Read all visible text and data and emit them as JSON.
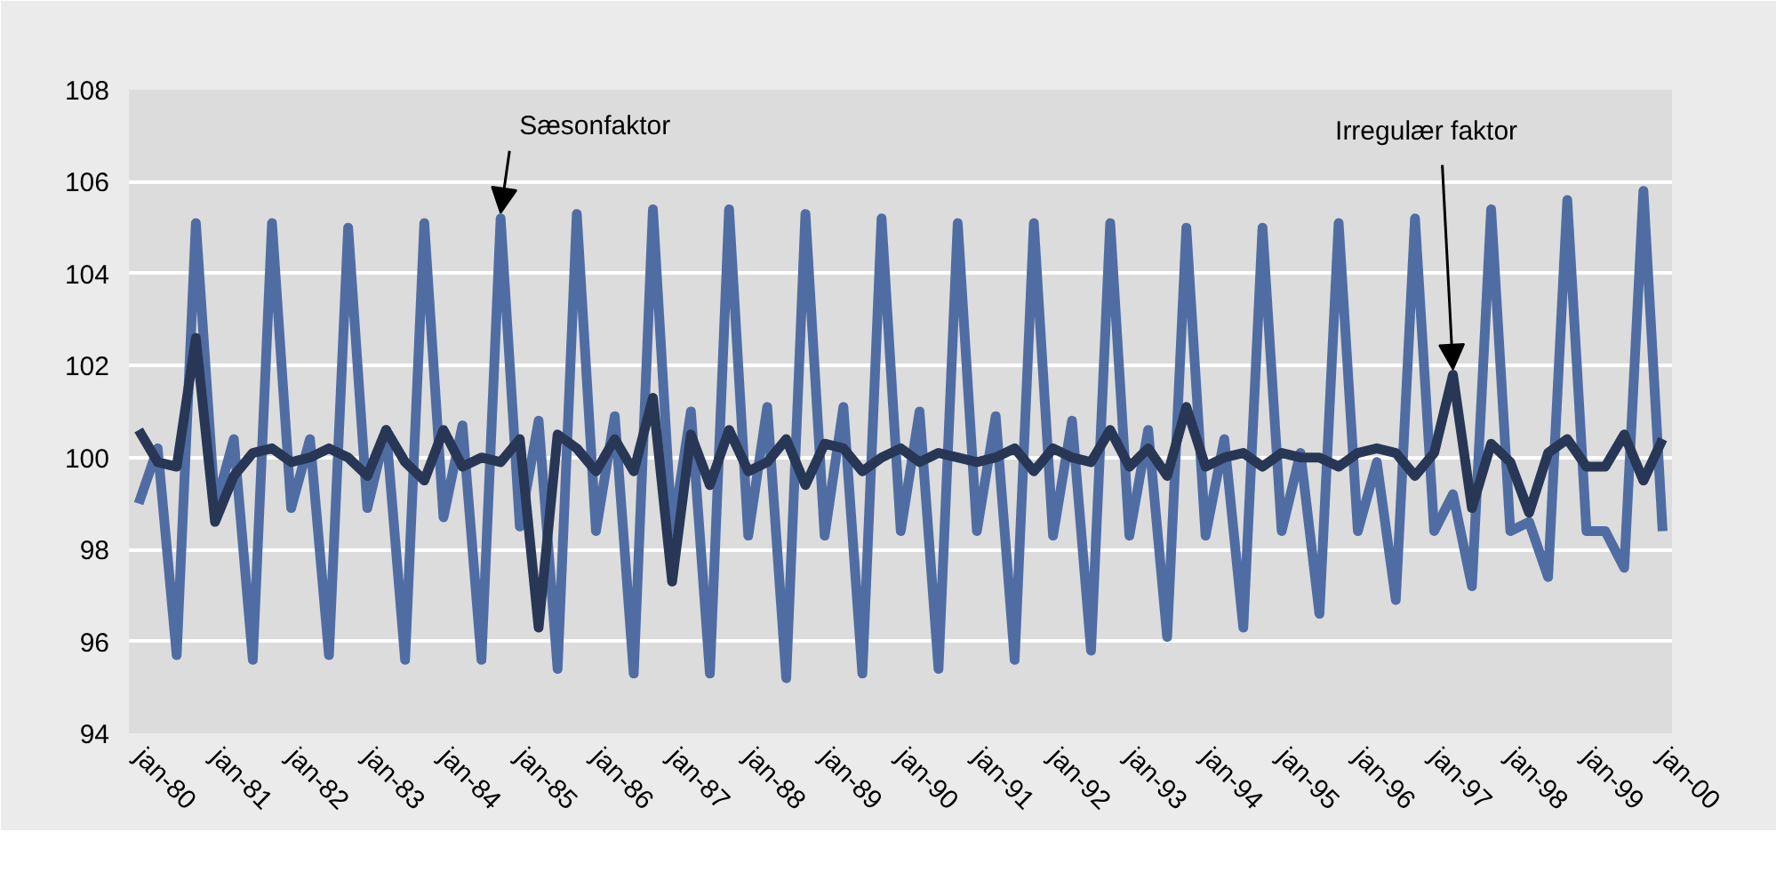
{
  "chart_data": {
    "type": "line",
    "x": [
      "1980-01",
      "1980-04",
      "1980-07",
      "1980-10",
      "1981-01",
      "1981-04",
      "1981-07",
      "1981-10",
      "1982-01",
      "1982-04",
      "1982-07",
      "1982-10",
      "1983-01",
      "1983-04",
      "1983-07",
      "1983-10",
      "1984-01",
      "1984-04",
      "1984-07",
      "1984-10",
      "1985-01",
      "1985-04",
      "1985-07",
      "1985-10",
      "1986-01",
      "1986-04",
      "1986-07",
      "1986-10",
      "1987-01",
      "1987-04",
      "1987-07",
      "1987-10",
      "1988-01",
      "1988-04",
      "1988-07",
      "1988-10",
      "1989-01",
      "1989-04",
      "1989-07",
      "1989-10",
      "1990-01",
      "1990-04",
      "1990-07",
      "1990-10",
      "1991-01",
      "1991-04",
      "1991-07",
      "1991-10",
      "1992-01",
      "1992-04",
      "1992-07",
      "1992-10",
      "1993-01",
      "1993-04",
      "1993-07",
      "1993-10",
      "1994-01",
      "1994-04",
      "1994-07",
      "1994-10",
      "1995-01",
      "1995-04",
      "1995-07",
      "1995-10",
      "1996-01",
      "1996-04",
      "1996-07",
      "1996-10",
      "1997-01",
      "1997-04",
      "1997-07",
      "1997-10",
      "1998-01",
      "1998-04",
      "1998-07",
      "1998-10",
      "1999-01",
      "1999-04",
      "1999-07",
      "1999-10",
      "2000-01"
    ],
    "series": [
      {
        "color": "#4f6da3",
        "values": [
          99.0,
          100.2,
          95.7,
          105.1,
          98.9,
          100.4,
          95.6,
          105.1,
          98.9,
          100.4,
          95.7,
          105.0,
          98.9,
          100.6,
          95.6,
          105.1,
          98.7,
          100.7,
          95.6,
          105.2,
          98.5,
          100.8,
          95.4,
          105.3,
          98.4,
          100.9,
          95.3,
          105.4,
          98.3,
          101.0,
          95.3,
          105.4,
          98.3,
          101.1,
          95.2,
          105.3,
          98.3,
          101.1,
          95.3,
          105.2,
          98.4,
          101.0,
          95.4,
          105.1,
          98.4,
          100.9,
          95.6,
          105.1,
          98.3,
          100.8,
          95.8,
          105.1,
          98.3,
          100.6,
          96.1,
          105.0,
          98.3,
          100.4,
          96.3,
          105.0,
          98.4,
          100.1,
          96.6,
          105.1,
          98.4,
          99.9,
          96.9,
          105.2,
          98.4,
          99.2,
          97.2,
          105.4,
          98.4,
          98.6,
          97.4,
          105.6,
          98.4,
          98.4,
          97.6,
          105.8,
          98.4
        ]
      },
      {
        "color": "#283755",
        "values": [
          100.6,
          99.9,
          99.8,
          102.6,
          98.6,
          99.6,
          100.1,
          100.2,
          99.9,
          100.0,
          100.2,
          100.0,
          99.6,
          100.6,
          99.9,
          99.5,
          100.6,
          99.8,
          100.0,
          99.9,
          100.4,
          96.3,
          100.5,
          100.2,
          99.7,
          100.4,
          99.7,
          101.3,
          97.3,
          100.5,
          99.4,
          100.6,
          99.7,
          99.9,
          100.4,
          99.4,
          100.3,
          100.2,
          99.7,
          100.0,
          100.2,
          99.9,
          100.1,
          100.0,
          99.9,
          100.0,
          100.2,
          99.7,
          100.2,
          100.0,
          99.9,
          100.6,
          99.8,
          100.2,
          99.6,
          101.1,
          99.8,
          100.0,
          100.1,
          99.8,
          100.1,
          100.0,
          100.0,
          99.8,
          100.1,
          100.2,
          100.1,
          99.6,
          100.1,
          101.8,
          98.9,
          100.3,
          99.9,
          98.8,
          100.1,
          100.4,
          99.8,
          99.8,
          100.5,
          99.5,
          100.4
        ]
      }
    ],
    "xlim": [
      "1979-11-15",
      "2000-02-15"
    ],
    "xticks": [
      {
        "value": "1980-01",
        "label": "jan-80"
      },
      {
        "value": "1981-01",
        "label": "jan-81"
      },
      {
        "value": "1982-01",
        "label": "jan-82"
      },
      {
        "value": "1983-01",
        "label": "jan-83"
      },
      {
        "value": "1984-01",
        "label": "jan-84"
      },
      {
        "value": "1985-01",
        "label": "jan-85"
      },
      {
        "value": "1986-01",
        "label": "jan-86"
      },
      {
        "value": "1987-01",
        "label": "jan-87"
      },
      {
        "value": "1988-01",
        "label": "jan-88"
      },
      {
        "value": "1989-01",
        "label": "jan-89"
      },
      {
        "value": "1990-01",
        "label": "jan-90"
      },
      {
        "value": "1991-01",
        "label": "jan-91"
      },
      {
        "value": "1992-01",
        "label": "jan-92"
      },
      {
        "value": "1993-01",
        "label": "jan-93"
      },
      {
        "value": "1994-01",
        "label": "jan-94"
      },
      {
        "value": "1995-01",
        "label": "jan-95"
      },
      {
        "value": "1996-01",
        "label": "jan-96"
      },
      {
        "value": "1997-01",
        "label": "jan-97"
      },
      {
        "value": "1998-01",
        "label": "jan-98"
      },
      {
        "value": "1999-01",
        "label": "jan-99"
      },
      {
        "value": "2000-01",
        "label": "jan-00"
      }
    ],
    "ylim": [
      94,
      108
    ],
    "yticks": [
      94,
      96,
      98,
      100,
      102,
      104,
      106,
      108
    ],
    "grid": "y",
    "marker": "none",
    "line_style": "solid",
    "annotations": [
      {
        "text": "Sæsonfaktor",
        "x": "1984-10",
        "y": 105.2
      },
      {
        "text": "Irregulær faktor",
        "x": "1997-04",
        "y": 101.8
      }
    ]
  }
}
